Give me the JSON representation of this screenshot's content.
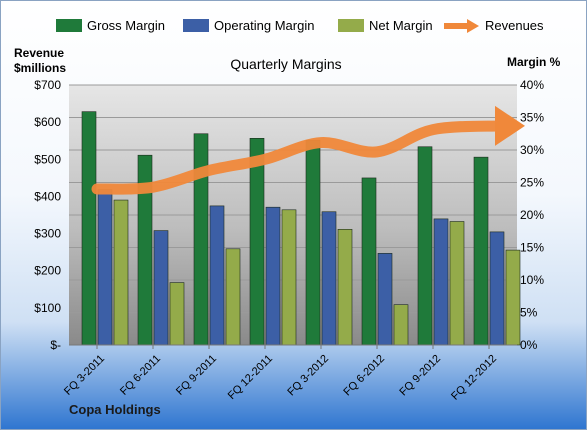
{
  "footer_label": "Copa Holdings",
  "chart_data": {
    "type": "bar",
    "title": "Quarterly Margins",
    "ylabel_left": [
      "Revenue",
      "$millions"
    ],
    "ylabel_right": "Margin %",
    "categories": [
      "FQ 3-2011",
      "FQ 6-2011",
      "FQ 9-2011",
      "FQ 12-2011",
      "FQ 3-2012",
      "FQ 6-2012",
      "FQ 9-2012",
      "FQ 12-2012"
    ],
    "left_axis": {
      "min": 0,
      "max": 700,
      "step": 100,
      "tick_labels": [
        "$-",
        "$100",
        "$200",
        "$300",
        "$400",
        "$500",
        "$600",
        "$700"
      ]
    },
    "right_axis": {
      "min": 0,
      "max": 40,
      "step": 5,
      "tick_labels": [
        "0%",
        "5%",
        "10%",
        "15%",
        "20%",
        "25%",
        "30%",
        "35%",
        "40%"
      ]
    },
    "grid": true,
    "legend_position": "top",
    "series": [
      {
        "name": "Gross Margin",
        "type": "bar",
        "axis": "right",
        "color": "#1f7a3a",
        "values": [
          35.9,
          29.2,
          32.5,
          31.8,
          31.5,
          25.7,
          30.5,
          28.9
        ]
      },
      {
        "name": "Operating Margin",
        "type": "bar",
        "axis": "right",
        "color": "#3c5fa6",
        "values": [
          23.9,
          17.6,
          21.4,
          21.2,
          20.5,
          14.1,
          19.4,
          17.4
        ]
      },
      {
        "name": "Net Margin",
        "type": "bar",
        "axis": "right",
        "color": "#94ab4a",
        "values": [
          22.3,
          9.6,
          14.8,
          20.8,
          17.8,
          6.2,
          19.0,
          14.6
        ]
      },
      {
        "name": "Revenues",
        "type": "line",
        "axis": "left",
        "color": "#f0883a",
        "values": [
          420,
          425,
          470,
          500,
          545,
          520,
          580,
          590
        ]
      }
    ]
  }
}
